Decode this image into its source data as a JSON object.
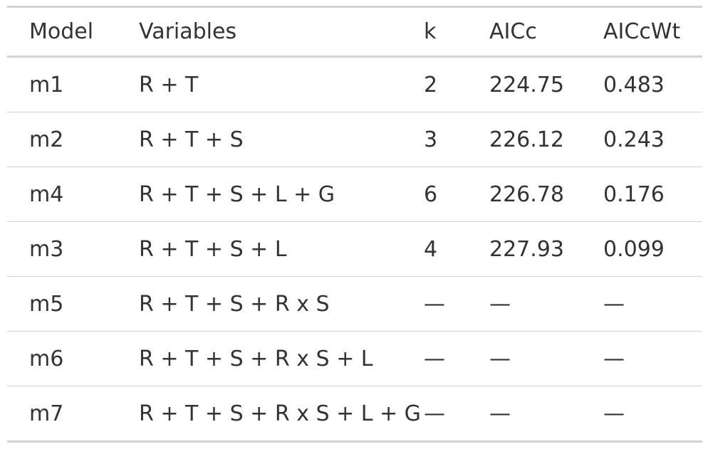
{
  "table": {
    "headers": [
      "Model",
      "Variables",
      "k",
      "AICc",
      "AICcWt"
    ],
    "rows": [
      [
        "m1",
        "R + T",
        "2",
        "224.75",
        "0.483"
      ],
      [
        "m2",
        "R + T + S",
        "3",
        "226.12",
        "0.243"
      ],
      [
        "m4",
        "R + T + S + L + G",
        "6",
        "226.78",
        "0.176"
      ],
      [
        "m3",
        "R + T + S + L",
        "4",
        "227.93",
        "0.099"
      ],
      [
        "m5",
        "R + T + S + R x S",
        "—",
        "—",
        "—"
      ],
      [
        "m6",
        "R + T + S + R x S + L",
        "—",
        "—",
        "—"
      ],
      [
        "m7",
        "R + T + S + R x S + L + G",
        "—",
        "—",
        "—"
      ]
    ]
  }
}
